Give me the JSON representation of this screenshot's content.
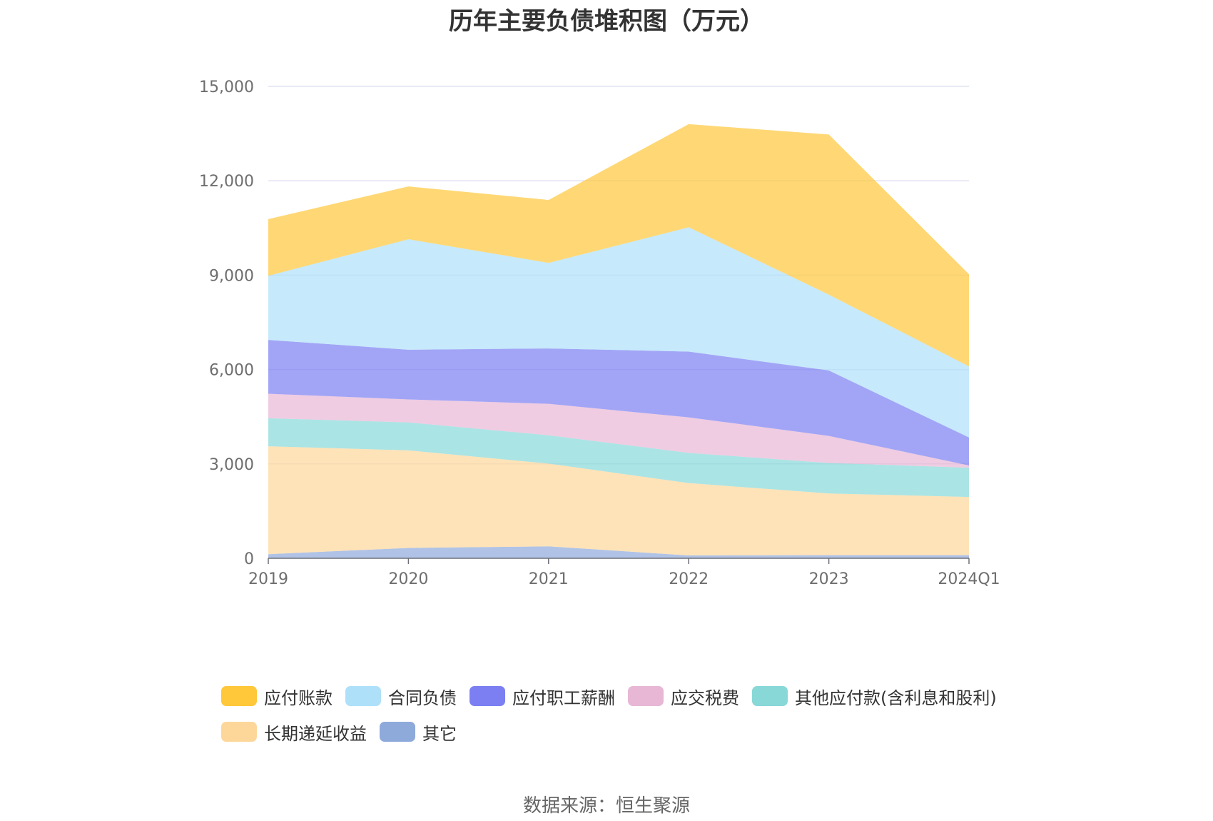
{
  "title": "历年主要负债堆积图（万元）",
  "source": "数据来源：恒生聚源",
  "chart_data": {
    "type": "area",
    "stacked": true,
    "categories": [
      "2019",
      "2020",
      "2021",
      "2022",
      "2023",
      "2024Q1"
    ],
    "ylim": [
      0,
      15000
    ],
    "yticks": [
      0,
      3000,
      6000,
      9000,
      12000,
      15000
    ],
    "ytick_labels": [
      "0",
      "3,000",
      "6,000",
      "9,000",
      "12,000",
      "15,000"
    ],
    "grid": true,
    "legend_position": "bottom",
    "series": [
      {
        "name": "其它",
        "color": "#8eaadb",
        "values": [
          130,
          330,
          380,
          90,
          100,
          100
        ]
      },
      {
        "name": "长期递延收益",
        "color": "#fdd79a",
        "values": [
          3430,
          3100,
          2630,
          2300,
          1960,
          1850
        ]
      },
      {
        "name": "其他应付款(含利息和股利)",
        "color": "#88d8d8",
        "values": [
          890,
          890,
          900,
          960,
          970,
          930
        ]
      },
      {
        "name": "应交税费",
        "color": "#e8b7d6",
        "values": [
          780,
          730,
          1000,
          1130,
          860,
          70
        ]
      },
      {
        "name": "应付职工薪酬",
        "color": "#7b7ff2",
        "values": [
          1710,
          1580,
          1760,
          2090,
          2080,
          890
        ]
      },
      {
        "name": "合同负债",
        "color": "#aee0fa",
        "values": [
          2040,
          3510,
          2720,
          3950,
          2410,
          2260
        ]
      },
      {
        "name": "应付账款",
        "color": "#ffc73a",
        "values": [
          1800,
          1680,
          2000,
          3280,
          5090,
          2930
        ]
      }
    ]
  }
}
